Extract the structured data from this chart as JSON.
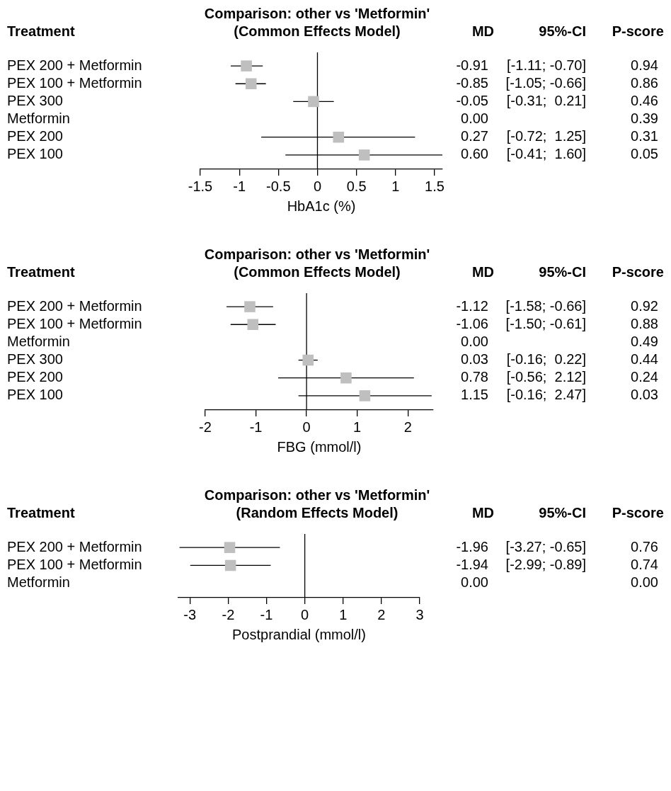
{
  "chart_data": [
    {
      "type": "scatter",
      "orientation": "horizontal",
      "title": "Comparison: other vs 'Metformin'",
      "subtitle": "(Common Effects Model)",
      "xlabel": "HbA1c (%)",
      "categories": [
        "PEX 200 + Metformin",
        "PEX 100 + Metformin",
        "PEX 300",
        "Metformin",
        "PEX 200",
        "PEX 100"
      ],
      "values": [
        -0.91,
        -0.85,
        -0.05,
        null,
        0.27,
        0.6
      ],
      "errors": [
        [
          -1.11,
          -0.7
        ],
        [
          -1.05,
          -0.66
        ],
        [
          -0.31,
          0.21
        ],
        null,
        [
          -0.72,
          1.25
        ],
        [
          -0.41,
          1.6
        ]
      ],
      "value_labels": [
        "-0.91",
        "-0.85",
        "-0.05",
        "0.00",
        "0.27",
        "0.60"
      ],
      "color": "#bfbfbf",
      "marker": "square",
      "xlim": [
        -1.5,
        1.6
      ],
      "xticks": [
        -1.5,
        -1,
        -0.5,
        0,
        0.5,
        1,
        1.5
      ],
      "ref_lines": [
        {
          "axis": "x",
          "value": 0
        }
      ],
      "annotations": [
        "Treatment",
        "MD",
        "95%-CI",
        "P-score",
        "[-1.11; -0.70]",
        "[-1.05; -0.66]",
        "[-0.31;  0.21]",
        "[-0.72;  1.25]",
        "[-0.41;  1.60]",
        "0.94",
        "0.86",
        "0.46",
        "0.39",
        "0.31",
        "0.05"
      ]
    },
    {
      "type": "scatter",
      "orientation": "horizontal",
      "title": "Comparison: other vs 'Metformin'",
      "subtitle": "(Common Effects Model)",
      "xlabel": "FBG (mmol/l)",
      "categories": [
        "PEX 200 + Metformin",
        "PEX 100 + Metformin",
        "Metformin",
        "PEX 300",
        "PEX 200",
        "PEX 100"
      ],
      "values": [
        -1.12,
        -1.06,
        null,
        0.03,
        0.78,
        1.15
      ],
      "errors": [
        [
          -1.58,
          -0.66
        ],
        [
          -1.5,
          -0.61
        ],
        null,
        [
          -0.16,
          0.22
        ],
        [
          -0.56,
          2.12
        ],
        [
          -0.16,
          2.47
        ]
      ],
      "value_labels": [
        "-1.12",
        "-1.06",
        "0.00",
        "0.03",
        "0.78",
        "1.15"
      ],
      "color": "#bfbfbf",
      "marker": "square",
      "xlim": [
        -2,
        2.5
      ],
      "xticks": [
        -2,
        -1,
        0,
        1,
        2
      ],
      "ref_lines": [
        {
          "axis": "x",
          "value": 0
        }
      ],
      "annotations": [
        "Treatment",
        "MD",
        "95%-CI",
        "P-score",
        "[-1.58; -0.66]",
        "[-1.50; -0.61]",
        "[-0.16;  0.22]",
        "[-0.56;  2.12]",
        "[-0.16;  2.47]",
        "0.92",
        "0.88",
        "0.49",
        "0.44",
        "0.24",
        "0.03"
      ]
    },
    {
      "type": "scatter",
      "orientation": "horizontal",
      "title": "Comparison: other vs 'Metformin'",
      "subtitle": "(Random Effects Model)",
      "xlabel": "Postprandial (mmol/l)",
      "categories": [
        "PEX 200 + Metformin",
        "PEX 100 + Metformin",
        "Metformin"
      ],
      "values": [
        -1.96,
        -1.94,
        null
      ],
      "errors": [
        [
          -3.27,
          -0.65
        ],
        [
          -2.99,
          -0.89
        ],
        null
      ],
      "value_labels": [
        "-1.96",
        "-1.94",
        "0.00"
      ],
      "color": "#bfbfbf",
      "marker": "square",
      "xlim": [
        -3.3,
        3
      ],
      "xticks": [
        -3,
        -2,
        -1,
        0,
        1,
        2,
        3
      ],
      "ref_lines": [
        {
          "axis": "x",
          "value": 0
        }
      ],
      "annotations": [
        "Treatment",
        "MD",
        "95%-CI",
        "P-score",
        "[-3.27; -0.65]",
        "[-2.99; -0.89]",
        "0.76",
        "0.74",
        "0.00"
      ]
    }
  ]
}
